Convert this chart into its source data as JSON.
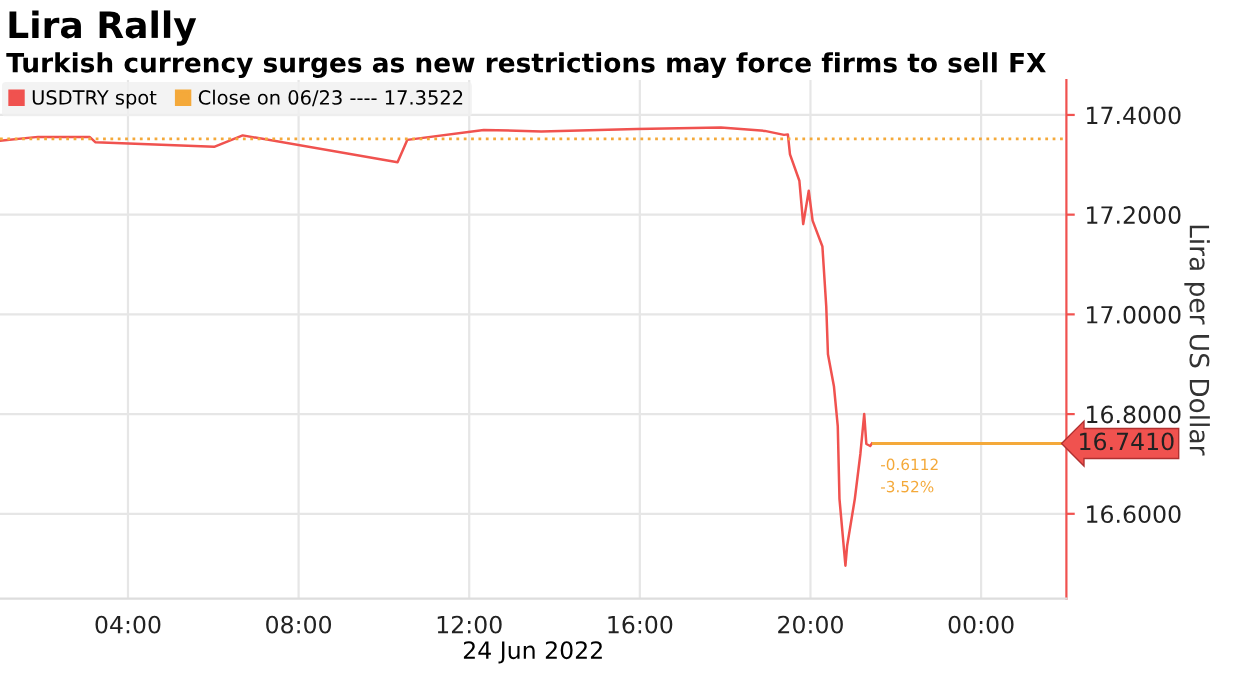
{
  "chart_data": {
    "type": "line",
    "title": "Lira Rally",
    "subtitle": "Turkish currency surges as new restrictions may force firms to sell FX",
    "xlabel": "24 Jun 2022",
    "ylabel": "Lira per US Dollar",
    "series": [
      {
        "name": "USDTRY spot",
        "color": "#f0524f",
        "x": [
          1.0,
          1.89,
          3.1,
          3.24,
          6.02,
          6.69,
          10.32,
          10.55,
          12.34,
          13.69,
          15.93,
          17.9,
          18.93,
          19.38,
          19.47,
          19.52,
          19.74,
          19.83,
          19.96,
          20.05,
          20.28,
          20.37,
          20.41,
          20.55,
          20.64,
          20.68,
          20.82,
          20.86,
          21.04,
          21.17,
          21.26,
          21.31,
          21.4,
          21.44
        ],
        "values": [
          17.348,
          17.356,
          17.356,
          17.345,
          17.336,
          17.359,
          17.305,
          17.35,
          17.37,
          17.367,
          17.372,
          17.375,
          17.368,
          17.36,
          17.361,
          17.321,
          17.268,
          17.181,
          17.248,
          17.188,
          17.136,
          17.016,
          16.92,
          16.856,
          16.776,
          16.63,
          16.496,
          16.536,
          16.63,
          16.72,
          16.8,
          16.74,
          16.736,
          16.741
        ]
      }
    ],
    "xlim": [
      1,
      26
    ],
    "ylim": [
      16.43,
      17.47
    ],
    "xticks": [
      {
        "value": 4,
        "label": "04:00"
      },
      {
        "value": 8,
        "label": "08:00"
      },
      {
        "value": 12,
        "label": "12:00"
      },
      {
        "value": 16,
        "label": "16:00"
      },
      {
        "value": 20,
        "label": "20:00"
      },
      {
        "value": 24,
        "label": "00:00"
      }
    ],
    "yticks": [
      {
        "value": 16.6,
        "label": "16.6000"
      },
      {
        "value": 16.8,
        "label": "16.8000"
      },
      {
        "value": 17.0,
        "label": "17.0000"
      },
      {
        "value": 17.2,
        "label": "17.2000"
      },
      {
        "value": 17.4,
        "label": "17.4000"
      }
    ],
    "ref_lines": [
      {
        "axis": "y",
        "value": 17.3522,
        "label": "Close on 06/23 ---- 17.3522",
        "color": "#f4a93a",
        "line_style": "dotted"
      },
      {
        "axis": "y",
        "value": 16.741,
        "label": "16.7410",
        "color": "#f4a93a",
        "line_style": "solid"
      }
    ],
    "annotations": [
      {
        "text": "-0.6112",
        "x": 21.44,
        "y": 16.741
      },
      {
        "text": "-3.52%",
        "x": 21.44,
        "y": 16.741
      }
    ],
    "grid": true,
    "legend": "top left",
    "marker": "none",
    "line_style": "solid"
  }
}
